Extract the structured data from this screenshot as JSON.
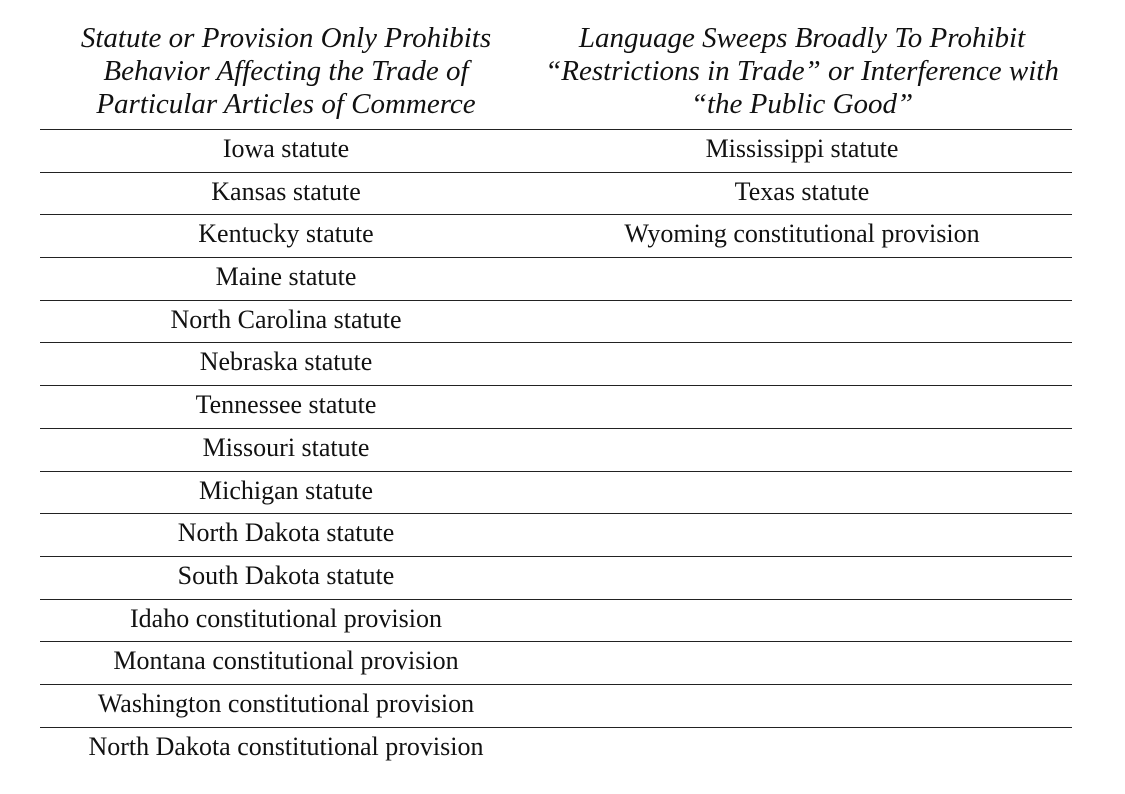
{
  "table": {
    "headers": {
      "left": [
        "Statute or Provision Only Prohibits",
        "Behavior Affecting the Trade of",
        "Particular Articles of Commerce"
      ],
      "right": [
        "Language Sweeps Broadly To Prohibit",
        "“Restrictions in Trade” or Interference with",
        "“the Public Good”"
      ]
    },
    "rows": [
      {
        "left": "Iowa statute",
        "right": "Mississippi statute"
      },
      {
        "left": "Kansas statute",
        "right": "Texas statute"
      },
      {
        "left": "Kentucky statute",
        "right": "Wyoming constitutional provision"
      },
      {
        "left": "Maine statute",
        "right": ""
      },
      {
        "left": "North Carolina statute",
        "right": ""
      },
      {
        "left": "Nebraska statute",
        "right": ""
      },
      {
        "left": "Tennessee statute",
        "right": ""
      },
      {
        "left": "Missouri statute",
        "right": ""
      },
      {
        "left": "Michigan statute",
        "right": ""
      },
      {
        "left": "North Dakota statute",
        "right": ""
      },
      {
        "left": "South Dakota statute",
        "right": ""
      },
      {
        "left": "Idaho constitutional provision",
        "right": ""
      },
      {
        "left": "Montana constitutional provision",
        "right": ""
      },
      {
        "left": "Washington constitutional provision",
        "right": ""
      },
      {
        "left": "North Dakota constitutional provision",
        "right": ""
      }
    ]
  }
}
